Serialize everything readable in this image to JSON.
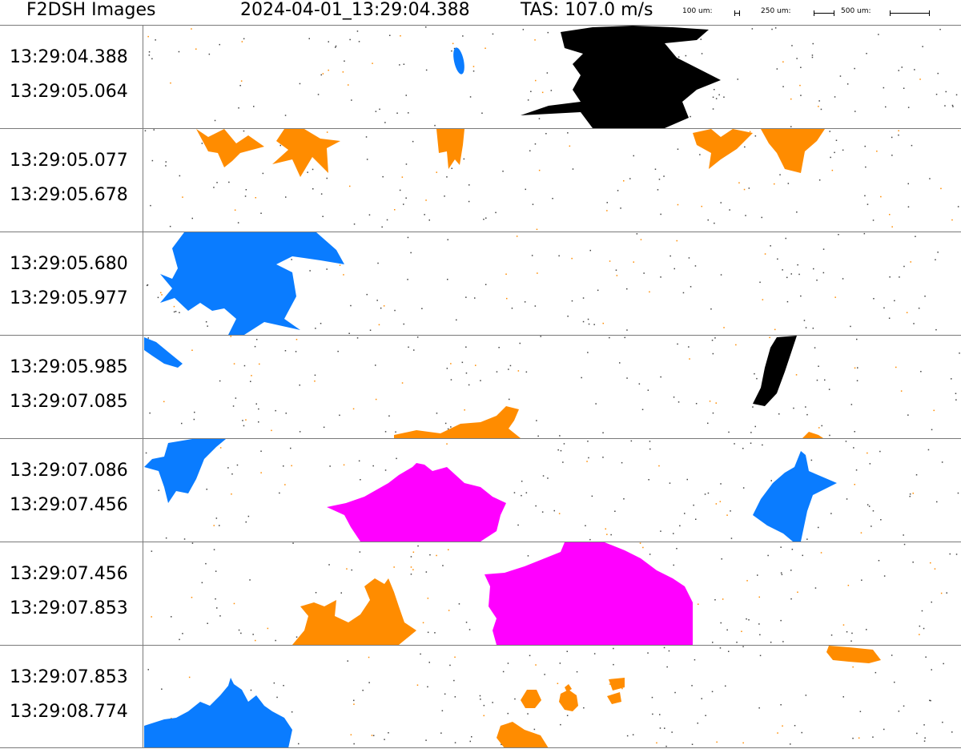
{
  "header": {
    "title": "F2DSH Images",
    "timestamp": "2024-04-01_13:29:04.388",
    "tas": "TAS: 107.0 m/s",
    "scale_bars": [
      {
        "label": "100 um:",
        "length_um": 100
      },
      {
        "label": "250 um:",
        "length_um": 250
      },
      {
        "label": "500 um:",
        "length_um": 500
      }
    ]
  },
  "colors": {
    "black": "#000000",
    "orange": "#ff8c00",
    "blue": "#0a7cff",
    "magenta": "#ff00ff",
    "divider": "#7a7a7a"
  },
  "strips": [
    {
      "start": "13:29:04.388",
      "end": "13:29:05.064"
    },
    {
      "start": "13:29:05.077",
      "end": "13:29:05.678"
    },
    {
      "start": "13:29:05.680",
      "end": "13:29:05.977"
    },
    {
      "start": "13:29:05.985",
      "end": "13:29:07.085"
    },
    {
      "start": "13:29:07.086",
      "end": "13:29:07.456"
    },
    {
      "start": "13:29:07.456",
      "end": "13:29:07.853"
    },
    {
      "start": "13:29:07.853",
      "end": "13:29:08.774"
    }
  ]
}
